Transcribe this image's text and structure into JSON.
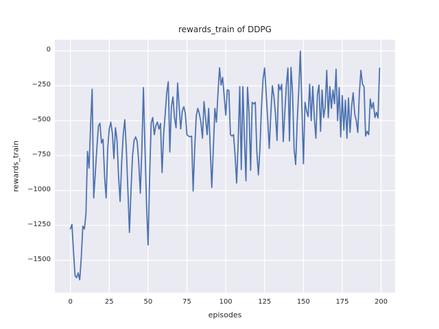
{
  "figure": {
    "background": "#ffffff"
  },
  "chart_data": {
    "type": "line",
    "title": "rewards_train of DDPG",
    "xlabel": "episodes",
    "ylabel": "rewards_train",
    "grid": true,
    "legend": "none",
    "plot_background": "#eaeaf2",
    "grid_color": "#ffffff",
    "text_color": "#262626",
    "x_ticks": [
      0,
      25,
      50,
      75,
      100,
      125,
      150,
      175,
      200
    ],
    "y_ticks": [
      0,
      -250,
      -500,
      -750,
      -1000,
      -1250,
      -1500
    ],
    "xlim": [
      -10,
      209
    ],
    "ylim": [
      -1732,
      80
    ],
    "series": [
      {
        "name": "rewards_train",
        "color": "#4c72b0",
        "x_start": 0,
        "x_step": 1,
        "values": [
          -1275,
          -1243,
          -1440,
          -1610,
          -1625,
          -1590,
          -1640,
          -1480,
          -1255,
          -1276,
          -1168,
          -720,
          -840,
          -530,
          -274,
          -1053,
          -880,
          -700,
          -540,
          -518,
          -660,
          -633,
          -900,
          -1053,
          -700,
          -560,
          -510,
          -590,
          -772,
          -550,
          -640,
          -900,
          -1078,
          -800,
          -600,
          -493,
          -700,
          -1000,
          -1300,
          -1000,
          -750,
          -640,
          -616,
          -650,
          -800,
          -1020,
          -700,
          -263,
          -700,
          -1100,
          -1390,
          -900,
          -516,
          -477,
          -600,
          -534,
          -510,
          -560,
          -520,
          -872,
          -600,
          -452,
          -300,
          -221,
          -724,
          -400,
          -330,
          -480,
          -551,
          -230,
          -400,
          -559,
          -430,
          -400,
          -450,
          -600,
          -610,
          -615,
          -610,
          -1004,
          -700,
          -468,
          -412,
          -450,
          -511,
          -625,
          -363,
          -480,
          -600,
          -412,
          -700,
          -979,
          -700,
          -412,
          -510,
          -300,
          -121,
          -245,
          -190,
          -328,
          -460,
          -279,
          -283,
          -600,
          -610,
          -600,
          -750,
          -946,
          -650,
          -255,
          -850,
          -255,
          -625,
          -930,
          -260,
          -450,
          -856,
          -368,
          -380,
          -368,
          -724,
          -888,
          -700,
          -400,
          -200,
          -122,
          -300,
          -493,
          -699,
          -450,
          -250,
          -330,
          -450,
          -641,
          -240,
          -280,
          -240,
          -650,
          -440,
          -245,
          -123,
          -645,
          -118,
          -300,
          -707,
          -814,
          -500,
          -279,
          -2,
          -400,
          -808,
          -369,
          -430,
          -470,
          -238,
          -500,
          -254,
          -477,
          -625,
          -312,
          -245,
          -576,
          -280,
          -477,
          -400,
          -139,
          -477,
          -255,
          -411,
          -280,
          -378,
          -131,
          -500,
          -263,
          -616,
          -320,
          -567,
          -353,
          -625,
          -337,
          -584,
          -400,
          -300,
          -450,
          -500,
          -584,
          -300,
          -139,
          -238,
          -255,
          -610,
          -576,
          -600,
          -345,
          -412,
          -370,
          -477,
          -440,
          -480,
          -123
        ]
      }
    ]
  }
}
